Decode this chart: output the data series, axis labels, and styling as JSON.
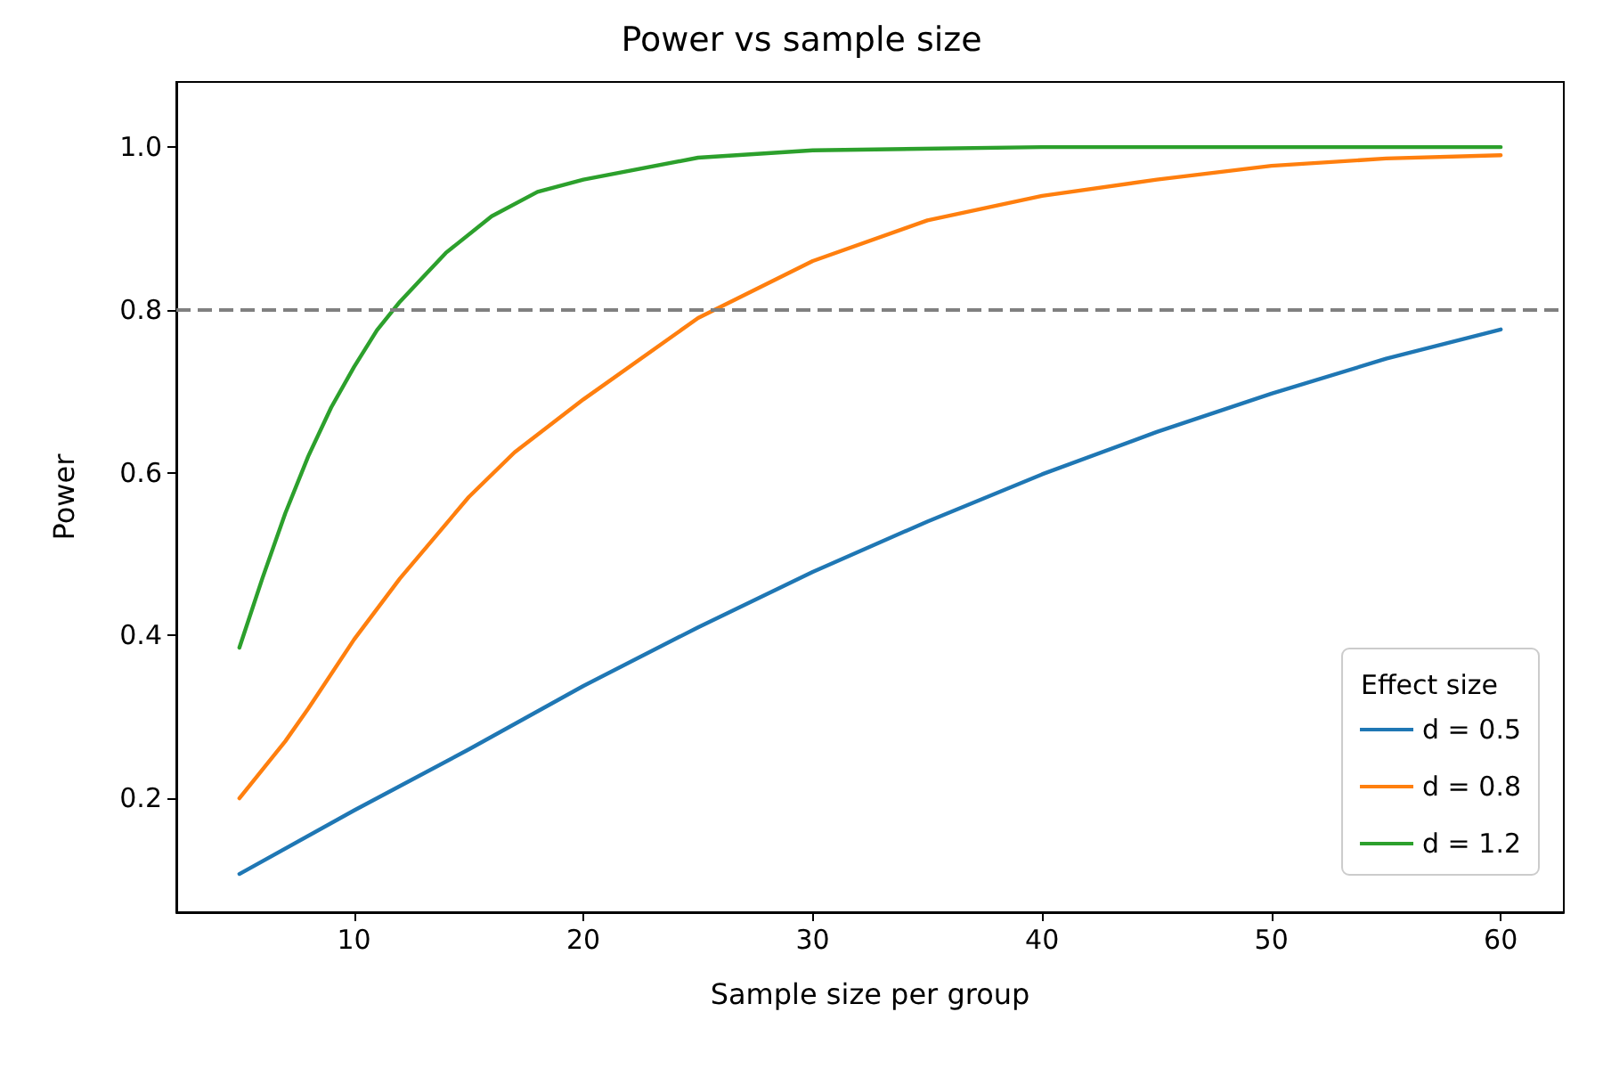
{
  "chart_data": {
    "type": "line",
    "title": "Power vs sample size",
    "xlabel": "Sample size per group",
    "ylabel": "Power",
    "legend_title": "Effect size",
    "xlim": [
      2.25,
      62.75
    ],
    "xticks": [
      10,
      20,
      30,
      40,
      50,
      60
    ],
    "ylim": [
      0.06,
      1.08
    ],
    "yticks": [
      0.2,
      0.4,
      0.6,
      0.8,
      {
        "value": 1.0,
        "label": "1.0"
      }
    ],
    "grid": false,
    "legend": "bottom right",
    "marker": "none",
    "line_style": "solid",
    "ref_lines": [
      {
        "axis": "y",
        "value": 0.8,
        "color": "#808080",
        "line_style": "dashed"
      }
    ],
    "series": [
      {
        "name": "d = 0.5",
        "color": "#1f77b4",
        "x": [
          5,
          10,
          15,
          20,
          25,
          30,
          35,
          40,
          45,
          50,
          55,
          60
        ],
        "values": [
          0.107,
          0.185,
          0.26,
          0.338,
          0.41,
          0.478,
          0.54,
          0.598,
          0.65,
          0.697,
          0.74,
          0.776
        ]
      },
      {
        "name": "d = 0.8",
        "color": "#ff7f0e",
        "x": [
          5,
          6,
          7,
          8,
          10,
          12,
          15,
          17,
          20,
          25,
          30,
          35,
          40,
          45,
          50,
          55,
          60
        ],
        "values": [
          0.2,
          0.235,
          0.27,
          0.31,
          0.395,
          0.47,
          0.57,
          0.625,
          0.69,
          0.79,
          0.86,
          0.91,
          0.94,
          0.96,
          0.977,
          0.986,
          0.99
        ]
      },
      {
        "name": "d = 1.2",
        "color": "#2ca02c",
        "x": [
          5,
          6,
          7,
          8,
          9,
          10,
          11,
          12,
          13,
          14,
          16,
          18,
          20,
          25,
          30,
          40,
          50,
          60
        ],
        "values": [
          0.385,
          0.47,
          0.55,
          0.62,
          0.68,
          0.73,
          0.775,
          0.81,
          0.84,
          0.87,
          0.915,
          0.945,
          0.96,
          0.987,
          0.996,
          1.0,
          1.0,
          1.0
        ]
      }
    ]
  }
}
